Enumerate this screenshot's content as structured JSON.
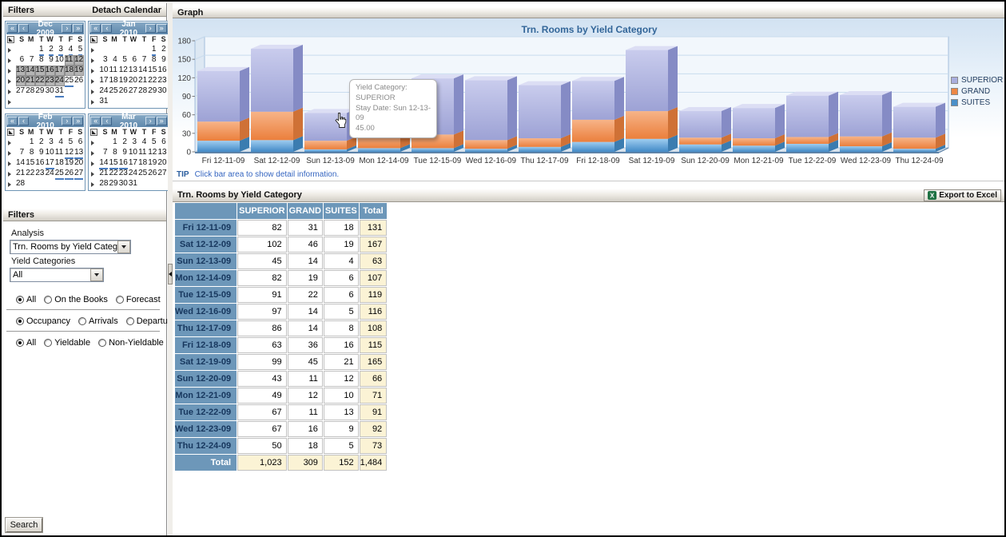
{
  "sidebar": {
    "header": {
      "filters": "Filters",
      "detach": "Detach Calendar"
    },
    "nav": {
      "first": "«",
      "prev": "‹",
      "next": "›",
      "last": "»"
    },
    "dow": [
      "S",
      "M",
      "T",
      "W",
      "T",
      "F",
      "S"
    ],
    "calendars": [
      {
        "title": "Dec 2009",
        "weeks": [
          [
            "",
            "",
            "1",
            "2",
            "3",
            "4",
            "5"
          ],
          [
            "6",
            "7",
            "8",
            "9",
            "10",
            "11",
            "12"
          ],
          [
            "13",
            "14",
            "15",
            "16",
            "17",
            "18",
            "19"
          ],
          [
            "20",
            "21",
            "22",
            "23",
            "24",
            "25",
            "26"
          ],
          [
            "27",
            "28",
            "29",
            "30",
            "31",
            "",
            ""
          ],
          [
            "",
            "",
            "",
            "",
            "",
            "",
            ""
          ]
        ],
        "highlighted": [
          "11",
          "12",
          "13",
          "14",
          "15",
          "16",
          "17",
          "18",
          "19",
          "20",
          "21",
          "22",
          "23",
          "24"
        ],
        "underlined": [
          "1",
          "2",
          "3",
          "4",
          "5",
          "25",
          "31"
        ]
      },
      {
        "title": "Jan 2010",
        "weeks": [
          [
            "",
            "",
            "",
            "",
            "",
            "1",
            "2"
          ],
          [
            "3",
            "4",
            "5",
            "6",
            "7",
            "8",
            "9"
          ],
          [
            "10",
            "11",
            "12",
            "13",
            "14",
            "15",
            "16"
          ],
          [
            "17",
            "18",
            "19",
            "20",
            "21",
            "22",
            "23"
          ],
          [
            "24",
            "25",
            "26",
            "27",
            "28",
            "29",
            "30"
          ],
          [
            "31",
            "",
            "",
            "",
            "",
            "",
            ""
          ]
        ],
        "highlighted": [],
        "underlined": [
          "1"
        ]
      },
      {
        "title": "Feb 2010",
        "weeks": [
          [
            "",
            "1",
            "2",
            "3",
            "4",
            "5",
            "6"
          ],
          [
            "7",
            "8",
            "9",
            "10",
            "11",
            "12",
            "13"
          ],
          [
            "14",
            "15",
            "16",
            "17",
            "18",
            "19",
            "20"
          ],
          [
            "21",
            "22",
            "23",
            "24",
            "25",
            "26",
            "27"
          ],
          [
            "28",
            "",
            "",
            "",
            "",
            "",
            ""
          ]
        ],
        "highlighted": [],
        "underlined": [
          "12",
          "13",
          "17",
          "25",
          "26",
          "27"
        ]
      },
      {
        "title": "Mar 2010",
        "weeks": [
          [
            "",
            "1",
            "2",
            "3",
            "4",
            "5",
            "6"
          ],
          [
            "7",
            "8",
            "9",
            "10",
            "11",
            "12",
            "13"
          ],
          [
            "14",
            "15",
            "16",
            "17",
            "18",
            "19",
            "20"
          ],
          [
            "21",
            "22",
            "23",
            "24",
            "25",
            "26",
            "27"
          ],
          [
            "28",
            "29",
            "30",
            "31",
            "",
            "",
            ""
          ]
        ],
        "highlighted": [],
        "underlined": [
          "14",
          "15",
          "16"
        ]
      }
    ],
    "filters_panel": {
      "title": "Filters",
      "analysis_label": "Analysis",
      "analysis_value": "Trn. Rooms by Yield Category",
      "yield_label": "Yield Categories",
      "yield_value": "All",
      "radio_groups": [
        {
          "options": [
            {
              "label": "All",
              "selected": true
            },
            {
              "label": "On the Books",
              "selected": false
            },
            {
              "label": "Forecast",
              "selected": false
            }
          ]
        },
        {
          "options": [
            {
              "label": "Occupancy",
              "selected": true
            },
            {
              "label": "Arrivals",
              "selected": false
            },
            {
              "label": "Departures",
              "selected": false
            }
          ]
        },
        {
          "options": [
            {
              "label": "All",
              "selected": true
            },
            {
              "label": "Yieldable",
              "selected": false
            },
            {
              "label": "Non-Yieldable",
              "selected": false
            }
          ]
        }
      ],
      "search_label": "Search"
    }
  },
  "graph_panel": {
    "header": "Graph",
    "tip_label": "TIP",
    "tip_text": "Click bar area to show detail information.",
    "tooltip": {
      "line1": "Yield Category: SUPERIOR",
      "line2": "Stay Date: Sun 12-13-09",
      "line3": "45.00"
    }
  },
  "chart_data": {
    "type": "bar",
    "stacked": true,
    "style": "3d",
    "title": "Trn. Rooms by Yield Category",
    "categories": [
      "Fri 12-11-09",
      "Sat 12-12-09",
      "Sun 12-13-09",
      "Mon 12-14-09",
      "Tue 12-15-09",
      "Wed 12-16-09",
      "Thu 12-17-09",
      "Fri 12-18-09",
      "Sat 12-19-09",
      "Sun 12-20-09",
      "Mon 12-21-09",
      "Tue 12-22-09",
      "Wed 12-23-09",
      "Thu 12-24-09"
    ],
    "series": [
      {
        "name": "SUITES",
        "color": "#4a90c9",
        "front": [
          "#9fcdf0",
          "#4189c6"
        ],
        "top": "#bfe0f6",
        "side": "#3b7cb0",
        "values": [
          18,
          19,
          4,
          6,
          6,
          5,
          8,
          16,
          21,
          12,
          10,
          13,
          9,
          5
        ]
      },
      {
        "name": "GRAND",
        "color": "#ee8745",
        "front": [
          "#f7b488",
          "#eb7f3c"
        ],
        "top": "#f9c9a6",
        "side": "#cf7136",
        "values": [
          31,
          46,
          14,
          19,
          22,
          14,
          14,
          36,
          45,
          11,
          12,
          11,
          16,
          18
        ]
      },
      {
        "name": "SUPERIOR",
        "color": "#a9aede",
        "front": [
          "#c9cced",
          "#9da2d5"
        ],
        "top": "#dcdef4",
        "side": "#858bc5",
        "values": [
          82,
          102,
          45,
          82,
          91,
          97,
          86,
          63,
          99,
          43,
          49,
          67,
          67,
          50
        ]
      }
    ],
    "legend": [
      "SUPERIOR",
      "GRAND",
      "SUITES"
    ],
    "legend_position": "right",
    "ylim": [
      0,
      180
    ],
    "yticks": [
      0,
      30,
      60,
      90,
      120,
      150,
      180
    ],
    "xlabel": "",
    "ylabel": "",
    "grid": true
  },
  "table_panel": {
    "title": "Trn. Rooms by Yield Category",
    "export_label": "Export to Excel",
    "columns": [
      "SUPERIOR",
      "GRAND",
      "SUITES",
      "Total"
    ],
    "rows": [
      {
        "label": "Fri 12-11-09",
        "values": [
          "82",
          "31",
          "18",
          "131"
        ]
      },
      {
        "label": "Sat 12-12-09",
        "values": [
          "102",
          "46",
          "19",
          "167"
        ]
      },
      {
        "label": "Sun 12-13-09",
        "values": [
          "45",
          "14",
          "4",
          "63"
        ]
      },
      {
        "label": "Mon 12-14-09",
        "values": [
          "82",
          "19",
          "6",
          "107"
        ]
      },
      {
        "label": "Tue 12-15-09",
        "values": [
          "91",
          "22",
          "6",
          "119"
        ]
      },
      {
        "label": "Wed 12-16-09",
        "values": [
          "97",
          "14",
          "5",
          "116"
        ]
      },
      {
        "label": "Thu 12-17-09",
        "values": [
          "86",
          "14",
          "8",
          "108"
        ]
      },
      {
        "label": "Fri 12-18-09",
        "values": [
          "63",
          "36",
          "16",
          "115"
        ]
      },
      {
        "label": "Sat 12-19-09",
        "values": [
          "99",
          "45",
          "21",
          "165"
        ]
      },
      {
        "label": "Sun 12-20-09",
        "values": [
          "43",
          "11",
          "12",
          "66"
        ]
      },
      {
        "label": "Mon 12-21-09",
        "values": [
          "49",
          "12",
          "10",
          "71"
        ]
      },
      {
        "label": "Tue 12-22-09",
        "values": [
          "67",
          "11",
          "13",
          "91"
        ]
      },
      {
        "label": "Wed 12-23-09",
        "values": [
          "67",
          "16",
          "9",
          "92"
        ]
      },
      {
        "label": "Thu 12-24-09",
        "values": [
          "50",
          "18",
          "5",
          "73"
        ]
      }
    ],
    "total_row": {
      "label": "Total",
      "values": [
        "1,023",
        "309",
        "152",
        "1,484"
      ]
    }
  }
}
